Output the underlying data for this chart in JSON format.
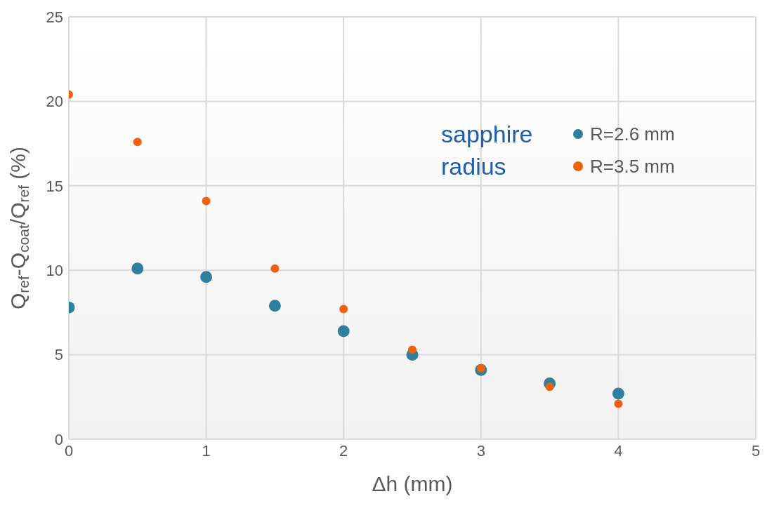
{
  "chart_data": {
    "type": "scatter",
    "xlabel": "Δh (mm)",
    "ylabel": "Q$_{ref}$-Q$_{coat}$/Q$_{ref}$ (%)",
    "legend_title": "sapphire radius",
    "x": [
      0,
      0.5,
      1,
      1.5,
      2,
      2.5,
      3,
      3.5,
      4
    ],
    "series": [
      {
        "name": "R=2.6 mm",
        "color": "#2f7f9f",
        "values": [
          7.8,
          10.1,
          9.6,
          7.9,
          6.4,
          5.0,
          4.1,
          3.3,
          2.7
        ]
      },
      {
        "name": "R=3.5 mm",
        "color": "#f0620a",
        "values": [
          20.4,
          17.6,
          14.1,
          10.1,
          7.7,
          5.3,
          4.2,
          3.1,
          2.1
        ]
      }
    ],
    "xlim": [
      0,
      5
    ],
    "xticks": [
      0,
      1,
      2,
      3,
      4,
      5
    ],
    "ylim": [
      0,
      25
    ],
    "yticks": [
      0,
      5,
      10,
      15,
      20,
      25
    ],
    "grid": true,
    "legend": "top right",
    "marker": "circle"
  }
}
